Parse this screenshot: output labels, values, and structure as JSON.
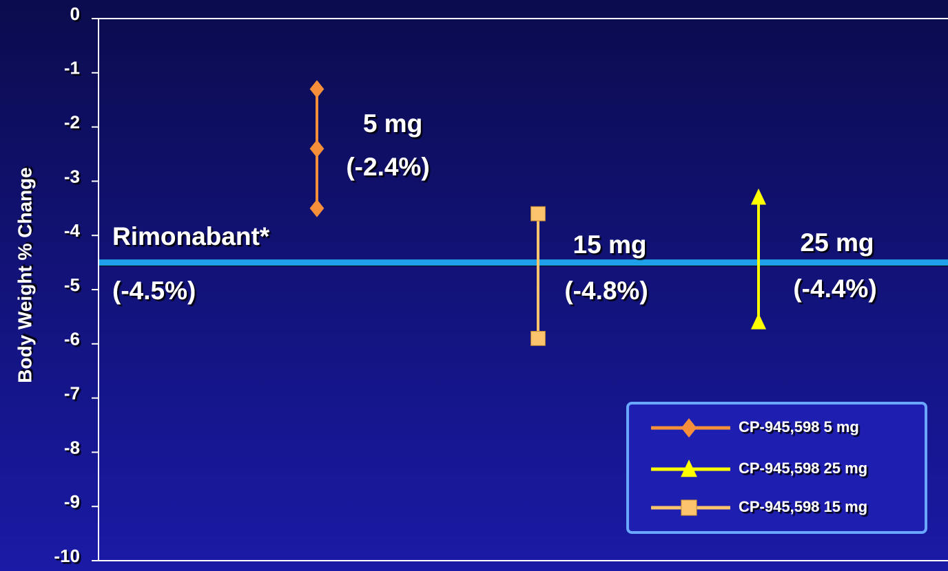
{
  "chart_data": {
    "type": "range",
    "ylabel": "Body Weight % Change",
    "ylim": [
      0,
      -10
    ],
    "yticks": [
      0,
      -1,
      -2,
      -3,
      -4,
      -5,
      -6,
      -7,
      -8,
      -9,
      -10
    ],
    "reference": {
      "name": "Rimonabant*",
      "value": -4.5,
      "label": "(-4.5%)",
      "color": "#1ea0ea"
    },
    "series": [
      {
        "name": "CP-945,598 5 mg",
        "color": "#f58f3a",
        "marker": "diamond",
        "values": [
          -1.3,
          -2.4,
          -3.5
        ],
        "dose": "5 mg",
        "mean_label": "(-2.4%)"
      },
      {
        "name": "CP-945,598 25 mg",
        "color": "#ffff00",
        "marker": "triangle",
        "values": [
          -3.3,
          -5.6
        ],
        "dose": "25 mg",
        "mean_label": "(-4.4%)"
      },
      {
        "name": "CP-945,598 15 mg",
        "color": "#fcc46c",
        "marker": "square",
        "values": [
          -3.6,
          -5.9
        ],
        "dose": "15 mg",
        "mean_label": "(-4.8%)"
      }
    ],
    "legend": "lower right"
  }
}
